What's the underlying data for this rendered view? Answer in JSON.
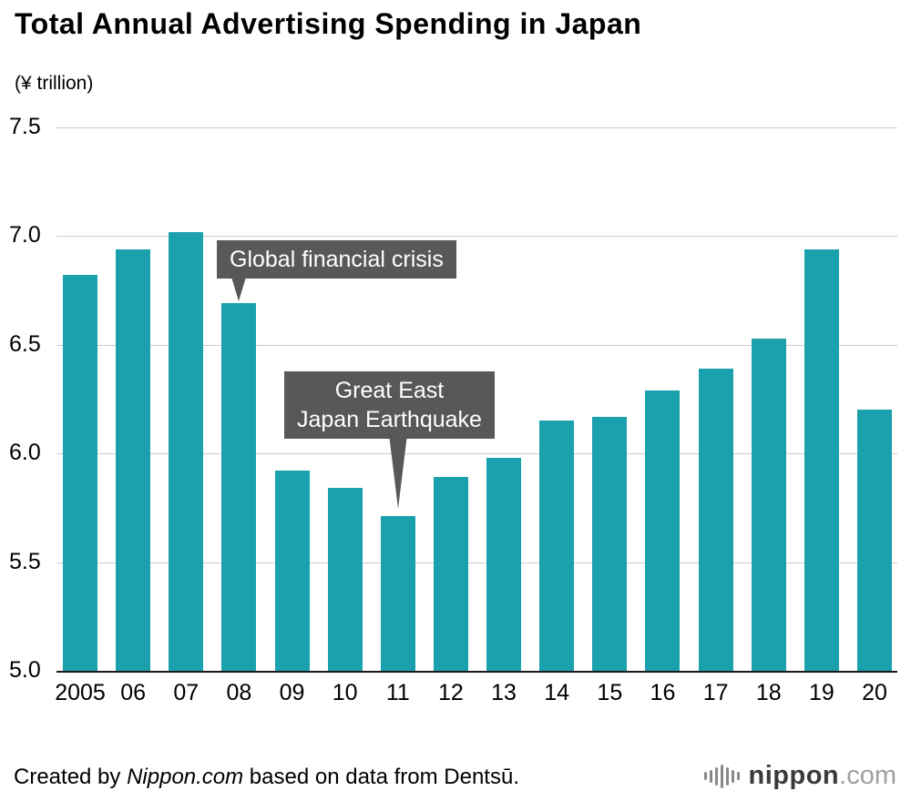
{
  "title": "Total Annual Advertising Spending in Japan",
  "unit_label": "(¥ trillion)",
  "chart_data": {
    "type": "bar",
    "categories": [
      "2005",
      "06",
      "07",
      "08",
      "09",
      "10",
      "11",
      "12",
      "13",
      "14",
      "15",
      "16",
      "17",
      "18",
      "19",
      "20"
    ],
    "values": [
      6.82,
      6.94,
      7.02,
      6.69,
      5.92,
      5.84,
      5.71,
      5.89,
      5.98,
      6.15,
      6.17,
      6.29,
      6.39,
      6.53,
      6.94,
      6.2
    ],
    "title": "Total Annual Advertising Spending in Japan",
    "xlabel": "",
    "ylabel": "¥ trillion",
    "ylim": [
      5.0,
      7.5
    ],
    "yticks": [
      7.5,
      7.0,
      6.5,
      6.0,
      5.5,
      5.0
    ],
    "grid": true,
    "legend": false,
    "bar_color": "#1ba1ae",
    "annotations": [
      {
        "text": "Global financial crisis",
        "target_category": "08",
        "target_value": 6.69
      },
      {
        "text": "Great East Japan Earthquake",
        "target_category": "11",
        "target_value": 5.71
      }
    ]
  },
  "annotations": {
    "crisis": {
      "label": "Global financial crisis"
    },
    "earthquake": {
      "line1": "Great East",
      "line2": "Japan Earthquake"
    }
  },
  "footer": {
    "prefix": "Created by ",
    "source_name": "Nippon.com",
    "suffix": " based on data from Dentsū."
  },
  "logo": {
    "name": "nippon",
    "tld": ".com",
    "mark": "soundbars-icon"
  },
  "colors": {
    "bar": "#1ba1ae",
    "annotation_bg": "#595757",
    "gridline": "#cccccc",
    "axis_line": "#1a1a1a",
    "text": "#000000",
    "logo_name": "#3e3a39",
    "logo_tld": "#9fa0a0"
  }
}
